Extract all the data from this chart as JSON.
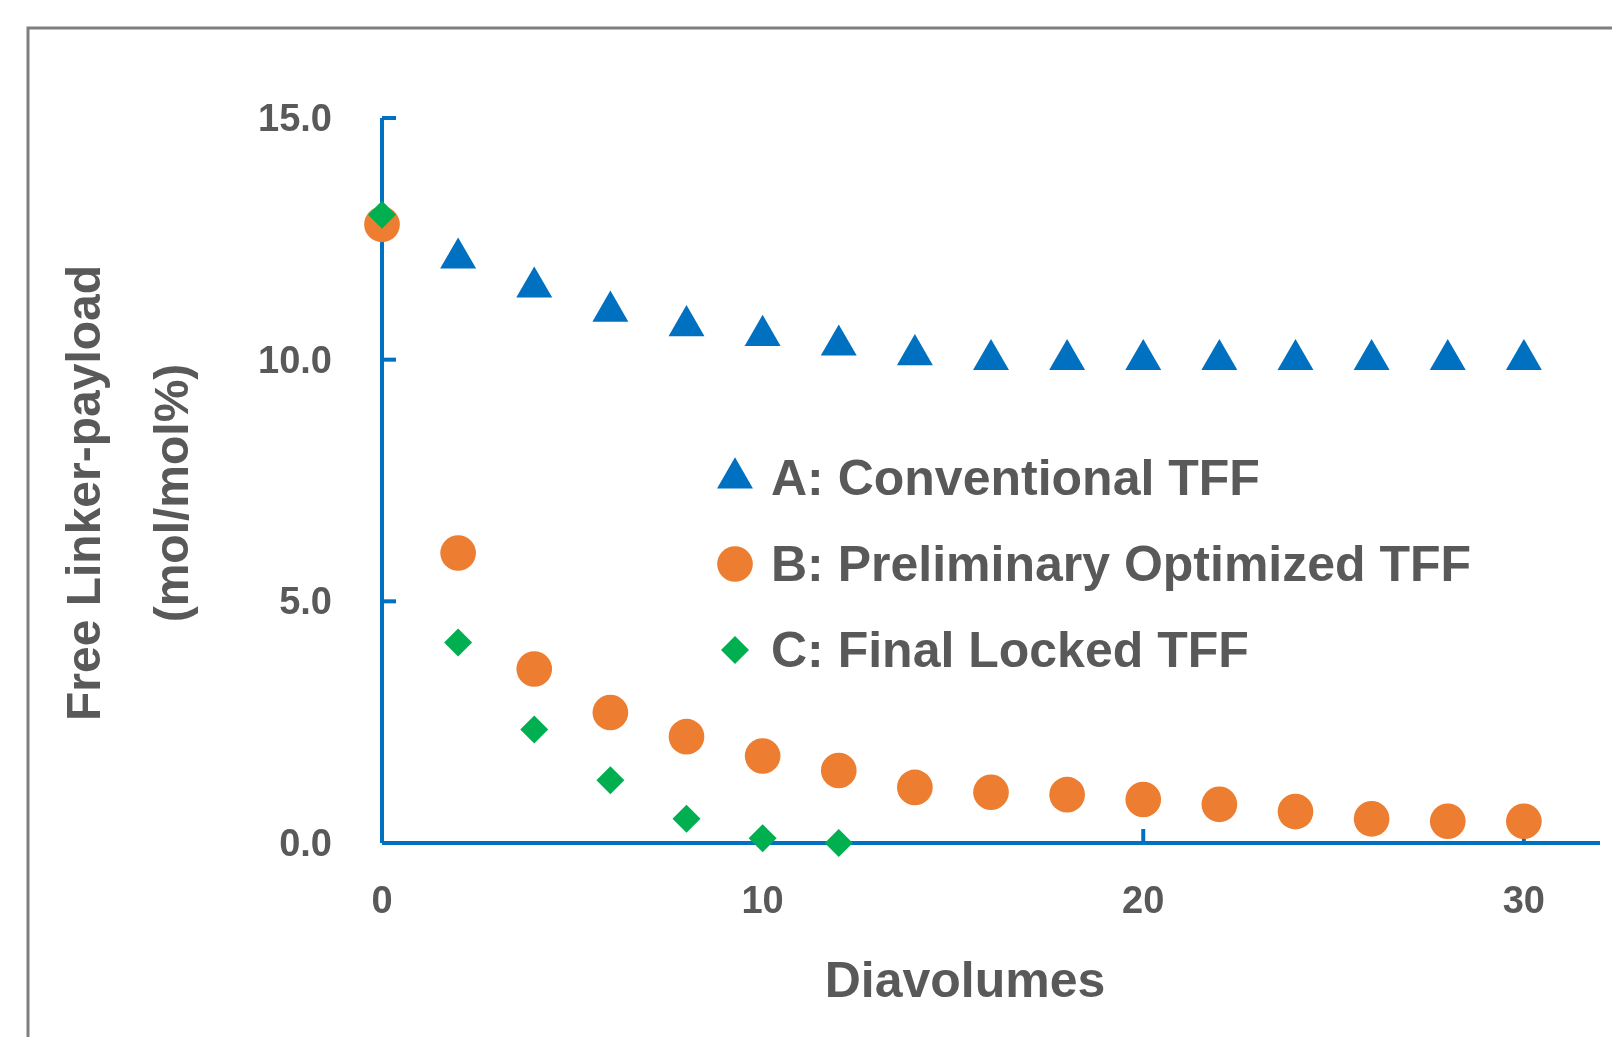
{
  "chart_data": {
    "type": "scatter",
    "xlabel": "Diavolumes",
    "ylabel": "Free Linker-payload (mol/mol%)",
    "xlim": [
      0,
      32
    ],
    "xticks": [
      0,
      10,
      20,
      30
    ],
    "ylim": [
      0,
      15
    ],
    "yticks": [
      {
        "value": 0,
        "label": "0.0"
      },
      {
        "value": 5,
        "label": "5.0"
      },
      {
        "value": 10,
        "label": "10.0"
      },
      {
        "value": 15,
        "label": "15.0"
      }
    ],
    "legend": "right",
    "grid": false,
    "series": [
      {
        "name": "A: Conventional TFF",
        "color": "#0070c0",
        "marker": "triangle",
        "x": [
          2,
          4,
          6,
          8,
          10,
          12,
          14,
          16,
          18,
          20,
          22,
          24,
          26,
          28,
          30
        ],
        "values": [
          12.1,
          11.5,
          11.0,
          10.7,
          10.5,
          10.3,
          10.1,
          10.0,
          10.0,
          10.0,
          10.0,
          10.0,
          10.0,
          10.0,
          10.0
        ]
      },
      {
        "name": "B: Preliminary Optimized TFF",
        "color": "#ed7d31",
        "marker": "circle",
        "x": [
          0,
          2,
          4,
          6,
          8,
          10,
          12,
          14,
          16,
          18,
          20,
          22,
          24,
          26,
          28,
          30
        ],
        "values": [
          12.8,
          6.0,
          3.6,
          2.7,
          2.2,
          1.8,
          1.5,
          1.15,
          1.05,
          1.0,
          0.9,
          0.8,
          0.65,
          0.5,
          0.45,
          0.45
        ]
      },
      {
        "name": "C: Final Locked TFF",
        "color": "#00b050",
        "marker": "diamond",
        "x": [
          0,
          2,
          4,
          6,
          8,
          10,
          12
        ],
        "values": [
          13.0,
          4.15,
          2.35,
          1.3,
          0.5,
          0.1,
          0.0
        ]
      }
    ]
  }
}
